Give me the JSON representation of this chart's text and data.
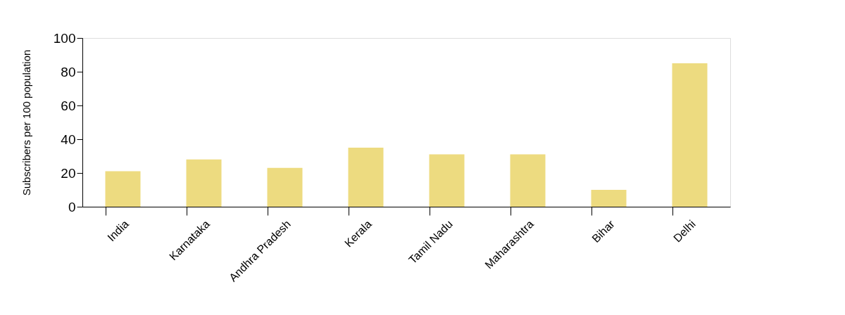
{
  "chart_data": {
    "type": "bar",
    "ylabel": "Subscribers per 100 population",
    "categories": [
      "India",
      "Karnataka",
      "Andhra Pradesh",
      "Kerala",
      "Tamil Nadu",
      "Maharashtra",
      "Bihar",
      "Delhi"
    ],
    "values": [
      21,
      28,
      23,
      35,
      31,
      31,
      10,
      85
    ],
    "color": "#eddb80",
    "ylim": [
      0,
      100
    ],
    "yticks": [
      0,
      20,
      40,
      60,
      80,
      100
    ],
    "grid": false
  }
}
